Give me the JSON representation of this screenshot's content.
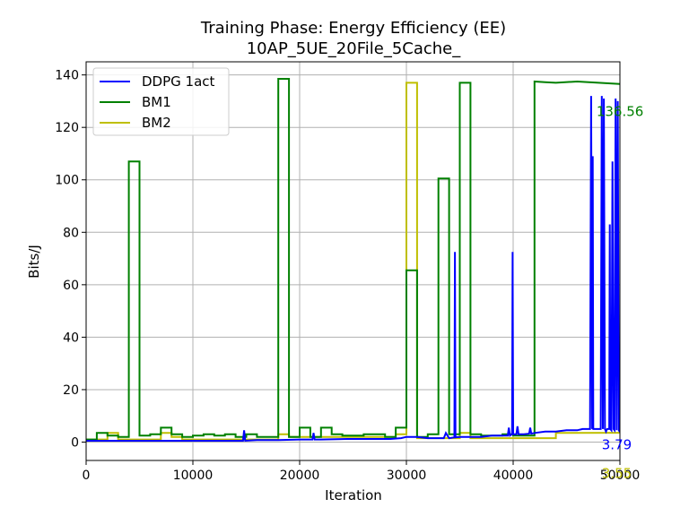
{
  "chart_data": {
    "type": "line",
    "title_line1": "Training Phase: Energy Efficiency (EE)",
    "title_line2": "10AP_5UE_20File_5Cache_",
    "xlabel": "Iteration",
    "ylabel": "Bits/J",
    "xlim": [
      0,
      50000
    ],
    "ylim": [
      -7,
      145
    ],
    "xticks": [
      0,
      10000,
      20000,
      30000,
      40000,
      50000
    ],
    "xtick_labels": [
      "0",
      "10000",
      "20000",
      "30000",
      "40000",
      "50000"
    ],
    "yticks": [
      0,
      20,
      40,
      60,
      80,
      100,
      120,
      140
    ],
    "ytick_labels": [
      "0",
      "20",
      "40",
      "60",
      "80",
      "100",
      "120",
      "140"
    ],
    "grid": true,
    "legend_position": "upper-left",
    "series": [
      {
        "name": "DDPG 1act",
        "color": "#0000ff",
        "x": [
          0,
          14700,
          14800,
          14900,
          16000,
          18000,
          20000,
          21200,
          21300,
          21400,
          22000,
          24500,
          28500,
          29500,
          30000,
          31000,
          32000,
          33500,
          33700,
          34000,
          34500,
          34550,
          34600,
          35000,
          36000,
          37000,
          38000,
          39000,
          39500,
          39600,
          39700,
          39900,
          39950,
          40000,
          40100,
          40300,
          40400,
          40500,
          41000,
          41500,
          41600,
          41700,
          42000,
          43000,
          44000,
          45000,
          46000,
          46500,
          47000,
          47200,
          47300,
          47400,
          47450,
          47500,
          47600,
          47700,
          48200,
          48300,
          48400,
          48500,
          48600,
          48700,
          48800,
          49000,
          49050,
          49100,
          49200,
          49300,
          49400,
          49500,
          49600,
          49700,
          49800,
          49900,
          50000
        ],
        "y": [
          0.5,
          0.5,
          4.5,
          0.5,
          0.8,
          0.8,
          1.0,
          1.0,
          3.5,
          1.0,
          1.0,
          1.2,
          1.2,
          1.5,
          2.0,
          2.0,
          1.5,
          1.5,
          3.5,
          1.5,
          1.8,
          72.5,
          1.8,
          2.0,
          2.0,
          2.0,
          2.5,
          2.5,
          2.5,
          5.5,
          2.5,
          3.0,
          72.5,
          3.0,
          3.0,
          3.0,
          6.0,
          3.0,
          3.0,
          3.2,
          5.5,
          3.2,
          3.5,
          4.0,
          4.0,
          4.5,
          4.5,
          5.0,
          5.0,
          5.0,
          132.0,
          5.0,
          109.0,
          5.0,
          5.0,
          5.0,
          5.0,
          132.0,
          5.0,
          131.0,
          5.0,
          4.0,
          5.0,
          5.0,
          83.0,
          5.0,
          4.5,
          107.0,
          5.0,
          4.5,
          131.0,
          4.5,
          130.0,
          4.5,
          3.79
        ]
      },
      {
        "name": "BM1",
        "color": "#008000",
        "x": [
          0,
          1000,
          1000,
          2000,
          2000,
          3000,
          3000,
          4000,
          4000,
          5000,
          5000,
          6000,
          6000,
          7000,
          7000,
          8000,
          8000,
          9000,
          9000,
          10000,
          10000,
          11000,
          11000,
          12000,
          12000,
          13000,
          13000,
          14000,
          14000,
          15000,
          15000,
          16000,
          16000,
          18000,
          18000,
          19000,
          19000,
          20000,
          20000,
          21000,
          21000,
          22000,
          22000,
          23000,
          23000,
          24000,
          24000,
          26000,
          26000,
          28000,
          28000,
          29000,
          29000,
          30000,
          30000,
          31000,
          31000,
          32000,
          32000,
          33000,
          33000,
          34000,
          34000,
          35000,
          35000,
          36000,
          36000,
          37000,
          37000,
          39000,
          39000,
          40000,
          40000,
          42000,
          42000,
          43000,
          44000,
          46000,
          48000,
          50000
        ],
        "y": [
          1,
          1,
          3.5,
          3.5,
          2.5,
          2.5,
          2,
          2,
          107,
          107,
          2.5,
          2.5,
          3,
          3,
          5.5,
          5.5,
          3,
          3,
          2,
          2,
          2.5,
          2.5,
          3,
          3,
          2.5,
          2.5,
          3,
          3,
          2,
          2,
          3,
          3,
          2,
          2,
          138.5,
          138.5,
          2,
          2,
          5.5,
          5.5,
          2,
          2,
          5.5,
          5.5,
          3,
          3,
          2.5,
          2.5,
          3,
          3,
          2,
          2,
          5.5,
          5.5,
          65.5,
          65.5,
          2,
          2,
          3,
          3,
          100.5,
          100.5,
          3,
          3,
          137,
          137,
          3,
          3,
          2.5,
          2.5,
          3,
          3,
          2.5,
          2.5,
          137.5,
          137.2,
          137,
          137.5,
          137,
          136.56
        ]
      },
      {
        "name": "BM2",
        "color": "#bfbf00",
        "x": [
          0,
          2000,
          2000,
          3000,
          3000,
          7000,
          7000,
          8000,
          8000,
          9000,
          9000,
          18000,
          18000,
          19000,
          19000,
          29000,
          29000,
          30000,
          30000,
          31000,
          31000,
          35000,
          35000,
          36000,
          36000,
          44000,
          44000,
          50000
        ],
        "y": [
          1,
          1,
          3.5,
          3.5,
          1,
          1,
          3.5,
          3.5,
          2,
          2,
          1,
          1,
          3,
          3,
          2,
          2,
          3,
          3,
          137,
          137,
          1.5,
          1.5,
          3.5,
          3.5,
          1.5,
          1.5,
          3.5,
          3.55
        ]
      }
    ],
    "annotations": [
      {
        "label": "136.56",
        "color": "#008000",
        "x": 47800,
        "y": 126
      },
      {
        "label": "3.79",
        "color": "#0000ff",
        "x": 48300,
        "y": -1
      },
      {
        "label": "3.55",
        "color": "#bfbf00",
        "x": 48300,
        "y": -12
      }
    ]
  }
}
